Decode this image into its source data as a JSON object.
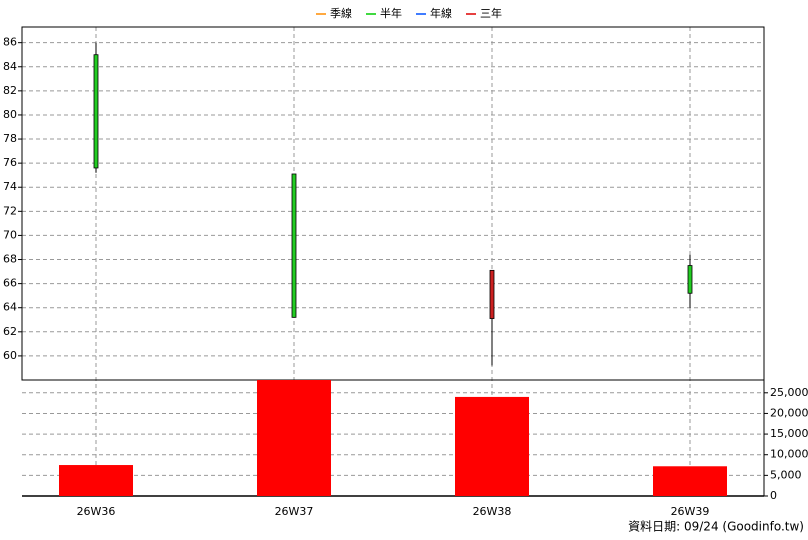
{
  "chart_data": {
    "type": "candlestick",
    "legend": [
      {
        "name": "季線",
        "color": "#ff8c00"
      },
      {
        "name": "半年",
        "color": "#00cc00"
      },
      {
        "name": "年線",
        "color": "#0050ff"
      },
      {
        "name": "三年",
        "color": "#dd0000"
      }
    ],
    "categories": [
      "26W36",
      "26W37",
      "26W38",
      "26W39"
    ],
    "open": [
      85.0,
      75.1,
      63.1,
      67.5
    ],
    "high": [
      86.0,
      75.1,
      67.1,
      68.4
    ],
    "low": [
      75.2,
      63.2,
      59.2,
      64.0
    ],
    "close": [
      75.6,
      63.2,
      67.1,
      65.2
    ],
    "up_color": "#cc2020",
    "down_color": "#22cc22",
    "ylim": [
      58.0,
      87.3
    ],
    "yticks": [
      60,
      62,
      64,
      66,
      68,
      70,
      72,
      74,
      76,
      78,
      80,
      82,
      84,
      86
    ],
    "grid": true,
    "volume": {
      "values": [
        7500,
        28100,
        24000,
        7200
      ],
      "color": "#ff0000",
      "ylim": [
        0,
        28100
      ],
      "yticks": [
        0,
        {
          "value": 5000,
          "label": "5,000"
        },
        {
          "value": 10000,
          "label": "10,000"
        },
        {
          "value": 15000,
          "label": "15,000"
        },
        {
          "value": 20000,
          "label": "20,000"
        },
        {
          "value": 25000,
          "label": "25,000"
        }
      ]
    }
  },
  "footer": "資料日期: 09/24  (Goodinfo.tw)"
}
